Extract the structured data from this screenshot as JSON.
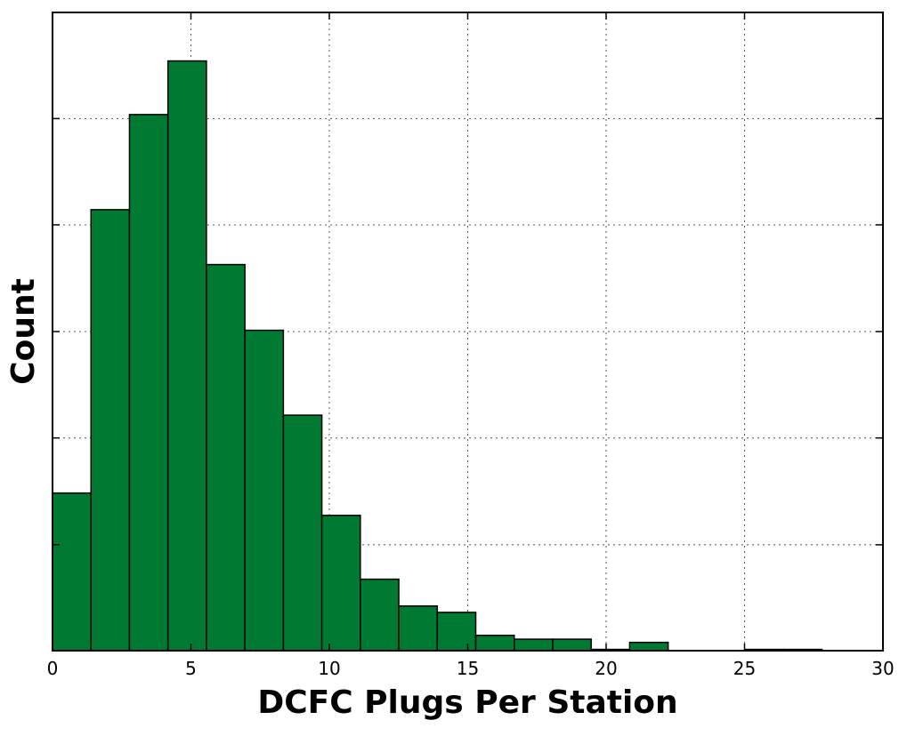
{
  "chart_data": {
    "type": "histogram",
    "title": "",
    "xlabel": "DCFC Plugs Per Station",
    "ylabel": "Count",
    "xlim": [
      0,
      30
    ],
    "ylim": [
      0,
      1
    ],
    "x_ticks": [
      0,
      5,
      10,
      15,
      20,
      25,
      30
    ],
    "y_ticks_labeled": false,
    "y_gridlines": [
      0.1659,
      0.3333,
      0.5,
      0.6672,
      0.8337
    ],
    "grid": true,
    "bar_color": "#007a33",
    "edge_color": "#000000",
    "bins": [
      {
        "x0": 0.0,
        "x1": 1.39,
        "value": 0.247
      },
      {
        "x0": 1.39,
        "x1": 2.78,
        "value": 0.691
      },
      {
        "x0": 2.78,
        "x1": 4.17,
        "value": 0.84
      },
      {
        "x0": 4.17,
        "x1": 5.56,
        "value": 0.924
      },
      {
        "x0": 5.56,
        "x1": 6.95,
        "value": 0.605
      },
      {
        "x0": 6.95,
        "x1": 8.34,
        "value": 0.502
      },
      {
        "x0": 8.34,
        "x1": 9.73,
        "value": 0.369
      },
      {
        "x0": 9.73,
        "x1": 11.12,
        "value": 0.212
      },
      {
        "x0": 11.12,
        "x1": 12.51,
        "value": 0.112
      },
      {
        "x0": 12.51,
        "x1": 13.9,
        "value": 0.07
      },
      {
        "x0": 13.9,
        "x1": 15.29,
        "value": 0.06
      },
      {
        "x0": 15.29,
        "x1": 16.68,
        "value": 0.024
      },
      {
        "x0": 16.68,
        "x1": 18.07,
        "value": 0.018
      },
      {
        "x0": 18.07,
        "x1": 19.46,
        "value": 0.018
      },
      {
        "x0": 19.46,
        "x1": 20.85,
        "value": 0.002
      },
      {
        "x0": 20.85,
        "x1": 22.24,
        "value": 0.013
      },
      {
        "x0": 22.24,
        "x1": 23.63,
        "value": 0.0
      },
      {
        "x0": 23.63,
        "x1": 25.02,
        "value": 0.0
      },
      {
        "x0": 25.02,
        "x1": 26.41,
        "value": 0.002
      },
      {
        "x0": 26.41,
        "x1": 27.8,
        "value": 0.002
      }
    ]
  }
}
